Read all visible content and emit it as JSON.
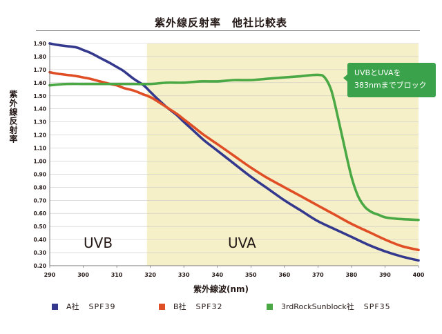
{
  "title": "紫外線反射率　他社比較表",
  "chart_data": {
    "type": "line",
    "title": "紫外線反射率　他社比較表",
    "xlabel": "紫外線波(nm)",
    "ylabel": "紫外線反射率",
    "xlim": [
      290,
      400
    ],
    "ylim": [
      0.2,
      1.9
    ],
    "xticks": [
      "290",
      "300",
      "310",
      "320",
      "330",
      "340",
      "350",
      "360",
      "370",
      "380",
      "390",
      "400"
    ],
    "yticks": [
      "0.20",
      "0.30",
      "0.40",
      "0.50",
      "0.60",
      "0.70",
      "0.80",
      "0.90",
      "1.00",
      "1.10",
      "1.20",
      "1.30",
      "1.40",
      "1.50",
      "1.60",
      "1.70",
      "1.80",
      "1.90"
    ],
    "grid": "horizontal",
    "regions": [
      {
        "label": "UVB",
        "from": 290,
        "to": 319,
        "color": "#ffffff"
      },
      {
        "label": "UVA",
        "from": 319,
        "to": 400,
        "color": "#f6f0c8"
      }
    ],
    "series": [
      {
        "name": "A社　SPF39",
        "color": "#34398e",
        "x": [
          290,
          292,
          295,
          298,
          300,
          302,
          305,
          308,
          310,
          312,
          315,
          318,
          320,
          322,
          325,
          328,
          330,
          333,
          336,
          340,
          345,
          350,
          355,
          360,
          365,
          370,
          375,
          380,
          385,
          390,
          395,
          400
        ],
        "y": [
          1.9,
          1.89,
          1.88,
          1.87,
          1.85,
          1.83,
          1.79,
          1.75,
          1.72,
          1.69,
          1.63,
          1.58,
          1.53,
          1.48,
          1.41,
          1.35,
          1.3,
          1.23,
          1.16,
          1.08,
          0.98,
          0.88,
          0.79,
          0.7,
          0.62,
          0.54,
          0.48,
          0.42,
          0.36,
          0.31,
          0.27,
          0.24
        ]
      },
      {
        "name": "B社　SPF32",
        "color": "#e04e26",
        "x": [
          290,
          292,
          295,
          298,
          300,
          302,
          305,
          308,
          310,
          312,
          315,
          318,
          320,
          322,
          325,
          328,
          330,
          333,
          336,
          340,
          345,
          350,
          355,
          360,
          365,
          370,
          375,
          380,
          385,
          390,
          395,
          400
        ],
        "y": [
          1.68,
          1.67,
          1.66,
          1.65,
          1.64,
          1.63,
          1.61,
          1.59,
          1.58,
          1.56,
          1.54,
          1.51,
          1.49,
          1.46,
          1.41,
          1.36,
          1.32,
          1.26,
          1.2,
          1.13,
          1.04,
          0.95,
          0.87,
          0.8,
          0.73,
          0.66,
          0.59,
          0.52,
          0.46,
          0.4,
          0.35,
          0.32
        ]
      },
      {
        "name": "3rdRockSunblock社　SPF35",
        "color": "#4aa845",
        "x": [
          290,
          295,
          300,
          305,
          310,
          315,
          320,
          325,
          330,
          335,
          340,
          345,
          350,
          355,
          360,
          365,
          370,
          372,
          374,
          376,
          378,
          380,
          382,
          384,
          386,
          388,
          390,
          393,
          396,
          400
        ],
        "y": [
          1.58,
          1.59,
          1.59,
          1.59,
          1.59,
          1.59,
          1.59,
          1.6,
          1.6,
          1.61,
          1.61,
          1.62,
          1.62,
          1.63,
          1.64,
          1.65,
          1.66,
          1.64,
          1.54,
          1.33,
          1.1,
          0.88,
          0.73,
          0.65,
          0.61,
          0.59,
          0.57,
          0.56,
          0.555,
          0.55
        ]
      }
    ],
    "annotations": [
      "UVBとUVAを",
      "383nmまでブロック"
    ]
  },
  "regions": {
    "uvb": "UVB",
    "uva": "UVA"
  },
  "callout": {
    "line1": "UVBとUVAを",
    "line2": "383nmまでブロック"
  },
  "legend": [
    {
      "name": "A社",
      "spf": "SPF39",
      "color": "#34398e"
    },
    {
      "name": "B社",
      "spf": "SPF32",
      "color": "#e04e26"
    },
    {
      "name": "3rdRockSunblock社",
      "spf": "SPF35",
      "color": "#4aa845"
    }
  ]
}
